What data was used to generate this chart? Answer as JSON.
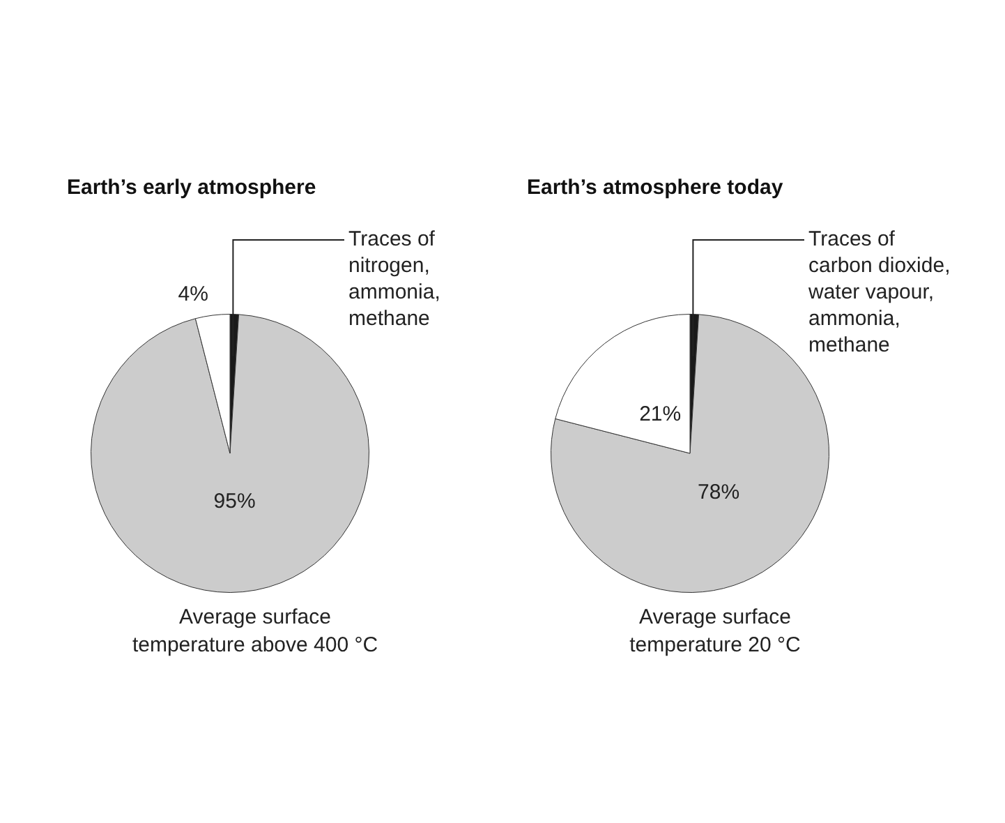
{
  "chart_data": [
    {
      "type": "pie",
      "title": "Earth’s early atmosphere",
      "categories": [
        "Traces of nitrogen, ammonia, methane",
        null,
        null
      ],
      "values": [
        1,
        95,
        4
      ],
      "colors": [
        "#1a1a1a",
        "#cccccc",
        "#ffffff"
      ],
      "value_labels": [
        null,
        "95%",
        "4%"
      ],
      "legend": false,
      "annotations": [
        "Average surface temperature above 400 °C"
      ]
    },
    {
      "type": "pie",
      "title": "Earth’s atmosphere today",
      "categories": [
        "Traces of carbon dioxide, water vapour, ammonia, methane",
        null,
        null
      ],
      "values": [
        1,
        78,
        21
      ],
      "colors": [
        "#1a1a1a",
        "#cccccc",
        "#ffffff"
      ],
      "value_labels": [
        null,
        "78%",
        "21%"
      ],
      "legend": false,
      "annotations": [
        "Average surface temperature 20 °C"
      ]
    }
  ]
}
